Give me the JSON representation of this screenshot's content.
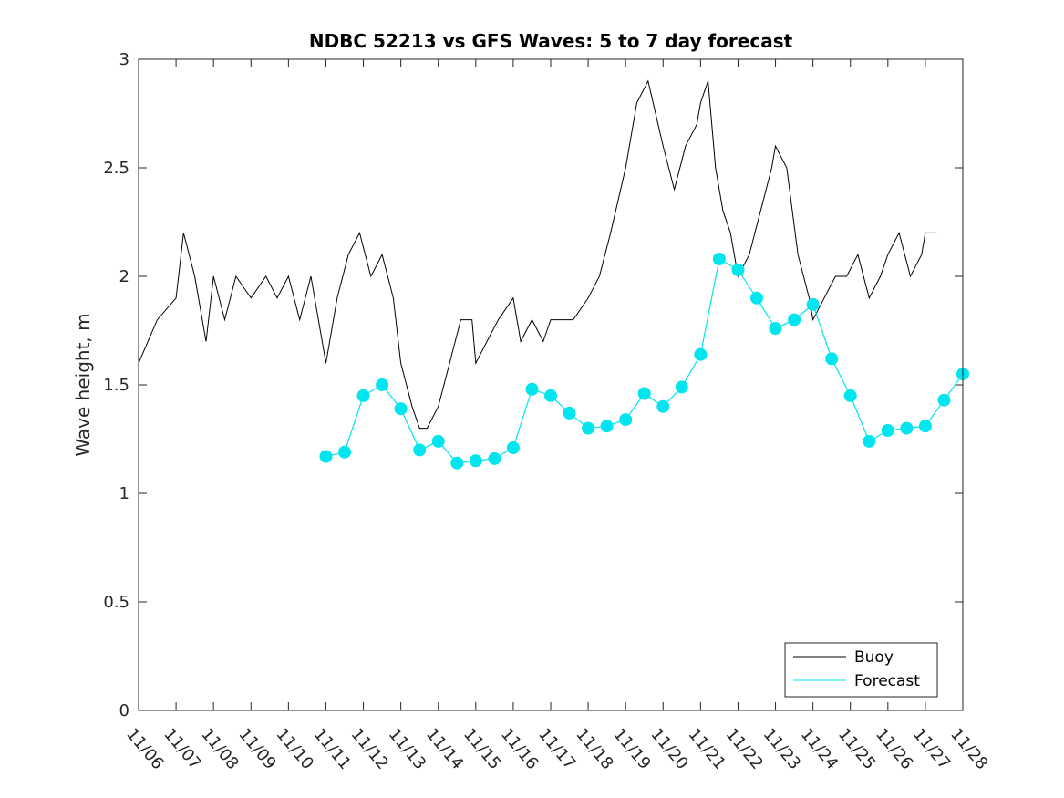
{
  "chart_data": {
    "type": "line",
    "title": "NDBC 52213 vs GFS Waves: 5 to 7 day forecast",
    "xlabel": "",
    "ylabel": "Wave height, m",
    "xlim": [
      0,
      22
    ],
    "ylim": [
      0,
      3
    ],
    "x_tick_labels": [
      "11/06",
      "11/07",
      "11/08",
      "11/09",
      "11/10",
      "11/11",
      "11/12",
      "11/13",
      "11/14",
      "11/15",
      "11/16",
      "11/17",
      "11/18",
      "11/19",
      "11/20",
      "11/21",
      "11/22",
      "11/23",
      "11/24",
      "11/25",
      "11/26",
      "11/27",
      "11/28"
    ],
    "y_tick_labels": [
      "0",
      "0.5",
      "1",
      "1.5",
      "2",
      "2.5",
      "3"
    ],
    "legend": {
      "position": "bottom-right",
      "entries": [
        "Buoy",
        "Forecast"
      ]
    },
    "colors": {
      "buoy": "#000000",
      "forecast": "#00e5ee"
    },
    "x_unit": "days since 11/06 00:00",
    "series": [
      {
        "name": "Buoy",
        "x": [
          0.0,
          0.5,
          1.0,
          1.2,
          1.5,
          1.8,
          2.0,
          2.3,
          2.6,
          3.0,
          3.4,
          3.7,
          4.0,
          4.3,
          4.6,
          5.0,
          5.3,
          5.6,
          5.9,
          6.2,
          6.5,
          6.8,
          7.0,
          7.3,
          7.5,
          7.7,
          8.0,
          8.3,
          8.6,
          8.9,
          9.0,
          9.3,
          9.6,
          10.0,
          10.2,
          10.5,
          10.8,
          11.0,
          11.3,
          11.6,
          12.0,
          12.3,
          12.6,
          13.0,
          13.3,
          13.6,
          14.0,
          14.3,
          14.6,
          14.9,
          15.0,
          15.2,
          15.4,
          15.6,
          15.8,
          16.0,
          16.3,
          16.6,
          16.9,
          17.0,
          17.3,
          17.6,
          17.9,
          18.0,
          18.3,
          18.6,
          18.9,
          19.2,
          19.5,
          19.8,
          20.0,
          20.3,
          20.6,
          20.9,
          21.0,
          21.3
        ],
        "y": [
          1.6,
          1.8,
          1.9,
          2.2,
          2.0,
          1.7,
          2.0,
          1.8,
          2.0,
          1.9,
          2.0,
          1.9,
          2.0,
          1.8,
          2.0,
          1.6,
          1.9,
          2.1,
          2.2,
          2.0,
          2.1,
          1.9,
          1.6,
          1.4,
          1.3,
          1.3,
          1.4,
          1.6,
          1.8,
          1.8,
          1.6,
          1.7,
          1.8,
          1.9,
          1.7,
          1.8,
          1.7,
          1.8,
          1.8,
          1.8,
          1.9,
          2.0,
          2.2,
          2.5,
          2.8,
          2.9,
          2.6,
          2.4,
          2.6,
          2.7,
          2.8,
          2.9,
          2.5,
          2.3,
          2.2,
          2.0,
          2.1,
          2.3,
          2.5,
          2.6,
          2.5,
          2.1,
          1.9,
          1.8,
          1.9,
          2.0,
          2.0,
          2.1,
          1.9,
          2.0,
          2.1,
          2.2,
          2.0,
          2.1,
          2.2,
          2.2
        ],
        "style": "line"
      },
      {
        "name": "Forecast",
        "x": [
          5.0,
          5.5,
          6.0,
          6.5,
          7.0,
          7.5,
          8.0,
          8.5,
          9.0,
          9.5,
          10.0,
          10.5,
          11.0,
          11.5,
          12.0,
          12.5,
          13.0,
          13.5,
          14.0,
          14.5,
          15.0,
          15.5,
          16.0,
          16.5,
          17.0,
          17.5,
          18.0,
          18.5,
          19.0,
          19.5,
          20.0,
          20.5,
          21.0,
          21.5,
          22.0
        ],
        "y": [
          1.17,
          1.19,
          1.45,
          1.5,
          1.39,
          1.2,
          1.24,
          1.14,
          1.15,
          1.16,
          1.21,
          1.48,
          1.45,
          1.37,
          1.3,
          1.31,
          1.34,
          1.46,
          1.4,
          1.49,
          1.64,
          2.08,
          2.03,
          1.9,
          1.76,
          1.8,
          1.87,
          1.62,
          1.45,
          1.24,
          1.29,
          1.3,
          1.31,
          1.43,
          1.55
        ],
        "style": "line with markers"
      }
    ]
  }
}
